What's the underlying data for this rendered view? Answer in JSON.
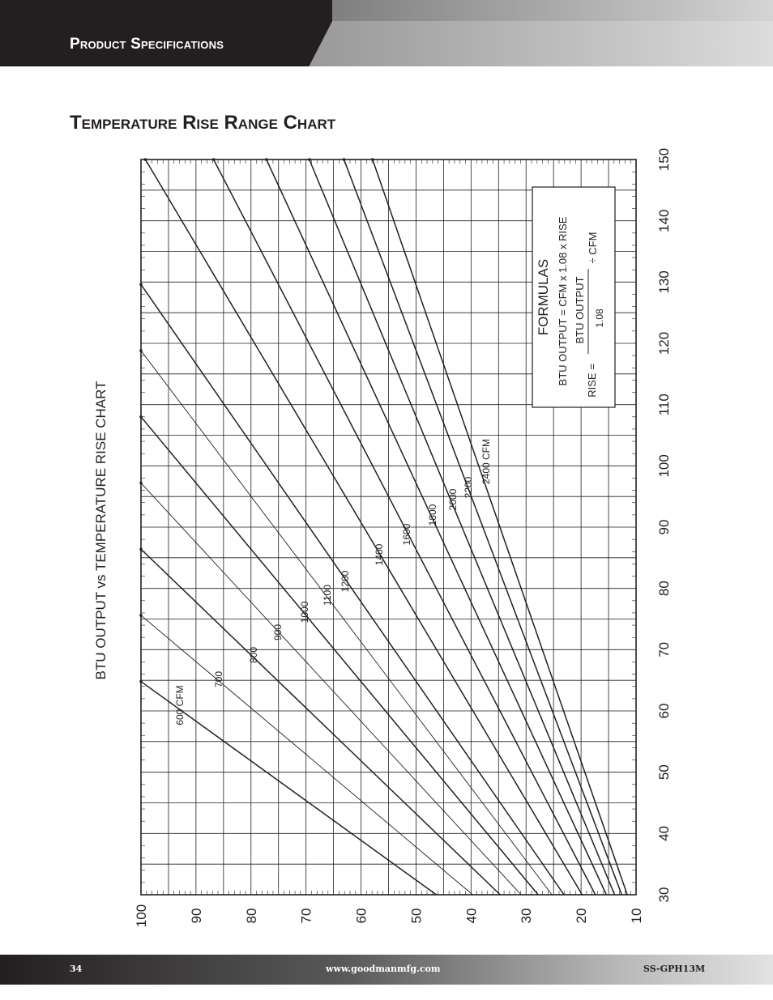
{
  "header": {
    "title": "Product Specifications"
  },
  "section": {
    "title": "Temperature Rise Range Chart"
  },
  "footer": {
    "page_number": "34",
    "website": "www.goodmanmfg.com",
    "doc_code": "SS-GPH13M"
  },
  "chart_data": {
    "type": "line",
    "title": "BTU OUTPUT vs TEMPERATURE RISE CHART",
    "orientation": "rotated 90° counter-clockwise",
    "x_axis": {
      "label": "",
      "range": [
        30,
        150
      ],
      "ticks": [
        30,
        40,
        50,
        60,
        70,
        80,
        90,
        100,
        110,
        120,
        130,
        140,
        150
      ]
    },
    "y_axis": {
      "label": "",
      "range": [
        10,
        100
      ],
      "ticks": [
        10,
        20,
        30,
        40,
        50,
        60,
        70,
        80,
        90,
        100
      ]
    },
    "grid": true,
    "formula": "BTU OUTPUT ≈ CFM × 1.08 × RISE (chart scale: x = BTU in thousands)",
    "series": [
      {
        "name": "600 CFM",
        "cfm": 600,
        "points": [
          [
            30,
            46.3
          ],
          [
            64.8,
            100
          ]
        ]
      },
      {
        "name": "700",
        "cfm": 700,
        "points": [
          [
            30,
            39.7
          ],
          [
            75.6,
            100
          ]
        ]
      },
      {
        "name": "800",
        "cfm": 800,
        "points": [
          [
            30,
            34.7
          ],
          [
            86.4,
            100
          ]
        ]
      },
      {
        "name": "900",
        "cfm": 900,
        "points": [
          [
            30,
            30.9
          ],
          [
            97.2,
            100
          ]
        ]
      },
      {
        "name": "1000",
        "cfm": 1000,
        "points": [
          [
            30,
            27.8
          ],
          [
            108,
            100
          ]
        ]
      },
      {
        "name": "1100",
        "cfm": 1100,
        "points": [
          [
            30,
            25.3
          ],
          [
            118.8,
            100
          ]
        ]
      },
      {
        "name": "1200",
        "cfm": 1200,
        "points": [
          [
            30,
            23.1
          ],
          [
            129.6,
            100
          ]
        ]
      },
      {
        "name": "1400",
        "cfm": 1400,
        "points": [
          [
            30,
            19.8
          ],
          [
            150,
            99.2
          ]
        ]
      },
      {
        "name": "1600",
        "cfm": 1600,
        "points": [
          [
            30,
            17.4
          ],
          [
            150,
            86.8
          ]
        ]
      },
      {
        "name": "1800",
        "cfm": 1800,
        "points": [
          [
            30,
            15.4
          ],
          [
            150,
            77.2
          ]
        ]
      },
      {
        "name": "2000",
        "cfm": 2000,
        "points": [
          [
            30,
            13.9
          ],
          [
            150,
            69.4
          ]
        ]
      },
      {
        "name": "2200",
        "cfm": 2200,
        "points": [
          [
            30,
            12.6
          ],
          [
            150,
            63.1
          ]
        ]
      },
      {
        "name": "2400 CFM",
        "cfm": 2400,
        "points": [
          [
            30,
            11.6
          ],
          [
            150,
            57.9
          ]
        ]
      }
    ]
  },
  "formulas_box": {
    "title": "FORMULAS",
    "line1": "BTU OUTPUT = CFM x 1.08 x RISE",
    "rise_label": "RISE =",
    "numerator": "BTU OUTPUT",
    "denominator": "1.08",
    "divisor": "÷ CFM"
  }
}
